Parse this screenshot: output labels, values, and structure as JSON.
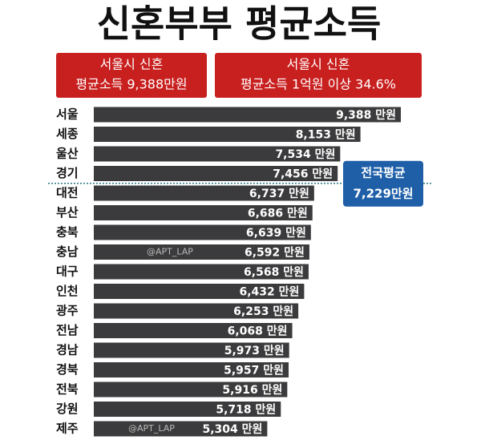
{
  "chart_data": {
    "type": "bar",
    "orientation": "horizontal",
    "title": "신혼부부 평균소득",
    "annotations": [
      {
        "line1": "서울시 신혼",
        "line2": "평균소득 9,388만원"
      },
      {
        "line1": "서울시 신혼",
        "line2": "평균소득 1억원 이상 34.6%"
      }
    ],
    "categories": [
      "서울",
      "세종",
      "울산",
      "경기",
      "대전",
      "부산",
      "충북",
      "충남",
      "대구",
      "인천",
      "광주",
      "전남",
      "경남",
      "경북",
      "전북",
      "강원",
      "제주"
    ],
    "values": [
      9388,
      8153,
      7534,
      7456,
      6737,
      6686,
      6639,
      6592,
      6568,
      6432,
      6253,
      6068,
      5973,
      5957,
      5916,
      5718,
      5304
    ],
    "value_labels": [
      "9,388 만원",
      "8,153 만원",
      "7,534 만원",
      "7,456 만원",
      "6,737 만원",
      "6,686 만원",
      "6,639 만원",
      "6,592 만원",
      "6,568 만원",
      "6,432 만원",
      "6,253 만원",
      "6,068 만원",
      "5,973 만원",
      "5,957 만원",
      "5,916 만원",
      "5,718 만원",
      "5,304 만원"
    ],
    "color": "#3b3b3d",
    "average": {
      "label": "전국평균",
      "value": 7229,
      "value_label": "7,229만원"
    },
    "watermarks": [
      "@APT_LAP",
      "@APT_LAP"
    ]
  }
}
